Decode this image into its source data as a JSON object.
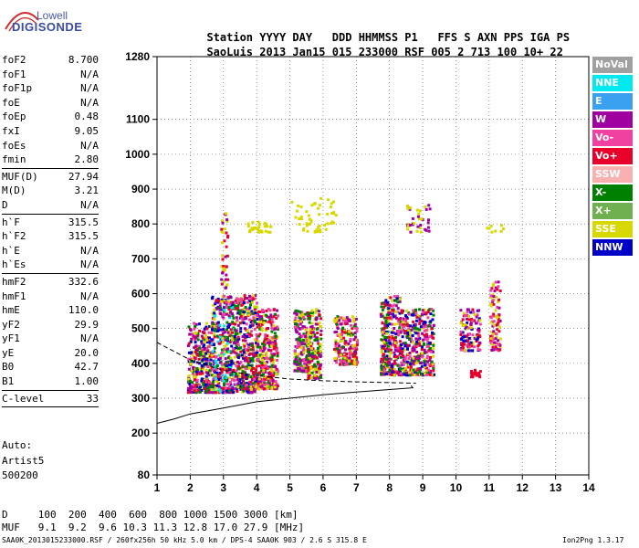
{
  "logo": {
    "line1": "Lowell",
    "line2": "DIGISONDE"
  },
  "header": {
    "labels": [
      "Station",
      "YYYY",
      "DAY",
      "DDD",
      "HHMMSS",
      "P1",
      "FFS",
      "S",
      "AXN",
      "PPS",
      "IGA",
      "PS"
    ],
    "values": [
      "SaoLuis",
      "2013",
      "Jan15",
      "015",
      "233000",
      "RSF",
      "005",
      "2",
      "713",
      "100",
      "10+",
      "22"
    ]
  },
  "params": [
    [
      {
        "k": "foF2",
        "v": "8.700"
      },
      {
        "k": "foF1",
        "v": "N/A"
      },
      {
        "k": "foF1p",
        "v": "N/A"
      },
      {
        "k": "foE",
        "v": "N/A"
      },
      {
        "k": "foEp",
        "v": "0.48"
      },
      {
        "k": "fxI",
        "v": "9.05"
      },
      {
        "k": "foEs",
        "v": "N/A"
      },
      {
        "k": "fmin",
        "v": "2.80"
      }
    ],
    [
      {
        "k": "MUF(D)",
        "v": "27.94"
      },
      {
        "k": "M(D)",
        "v": "3.21"
      },
      {
        "k": "D",
        "v": "N/A"
      }
    ],
    [
      {
        "k": "h`F",
        "v": "315.5"
      },
      {
        "k": "h`F2",
        "v": "315.5"
      },
      {
        "k": "h`E",
        "v": "N/A"
      },
      {
        "k": "h`Es",
        "v": "N/A"
      }
    ],
    [
      {
        "k": "hmF2",
        "v": "332.6"
      },
      {
        "k": "hmF1",
        "v": "N/A"
      },
      {
        "k": "hmE",
        "v": "110.0"
      },
      {
        "k": "yF2",
        "v": "29.9"
      },
      {
        "k": "yF1",
        "v": "N/A"
      },
      {
        "k": "yE",
        "v": "20.0"
      },
      {
        "k": "B0",
        "v": "42.7"
      },
      {
        "k": "B1",
        "v": "1.00"
      }
    ],
    [
      {
        "k": "C-level",
        "v": "33"
      }
    ]
  ],
  "auto": {
    "line1": "Auto:",
    "line2": "Artist5",
    "line3": "500200"
  },
  "legend": [
    {
      "label": "NoVal",
      "color": "#a0a0a0"
    },
    {
      "label": "NNE",
      "color": "#00e8f0"
    },
    {
      "label": "E",
      "color": "#3aa0f0"
    },
    {
      "label": "W",
      "color": "#a000a0"
    },
    {
      "label": "Vo-",
      "color": "#f040a0"
    },
    {
      "label": "Vo+",
      "color": "#e8002a"
    },
    {
      "label": "SSW",
      "color": "#f8b0b0"
    },
    {
      "label": "X-",
      "color": "#008000"
    },
    {
      "label": "X+",
      "color": "#70b050"
    },
    {
      "label": "SSE",
      "color": "#d8d800"
    },
    {
      "label": "NNW",
      "color": "#0000c8"
    }
  ],
  "chart_data": {
    "type": "scatter",
    "xlim": [
      1,
      14
    ],
    "ylim": [
      80,
      1280
    ],
    "x_ticks": [
      1,
      2,
      3,
      4,
      5,
      6,
      7,
      8,
      9,
      10,
      11,
      12,
      13,
      14
    ],
    "y_ticks": [
      80,
      200,
      300,
      400,
      500,
      600,
      700,
      800,
      900,
      1000,
      1100,
      1280
    ],
    "clusters": [
      {
        "x": [
          1.9,
          2.6
        ],
        "y": [
          320,
          520
        ],
        "n": 320,
        "colors": [
          "#e8002a",
          "#a000a0",
          "#d8d800",
          "#008000",
          "#f040a0",
          "#0000c8"
        ]
      },
      {
        "x": [
          2.6,
          3.3
        ],
        "y": [
          320,
          600
        ],
        "n": 420,
        "colors": [
          "#e8002a",
          "#a000a0",
          "#d8d800",
          "#008000",
          "#f040a0",
          "#0000c8",
          "#00e8f0"
        ]
      },
      {
        "x": [
          3.3,
          4.0
        ],
        "y": [
          320,
          600
        ],
        "n": 420,
        "colors": [
          "#e8002a",
          "#a000a0",
          "#d8d800",
          "#f040a0",
          "#0000c8",
          "#008000"
        ]
      },
      {
        "x": [
          4.0,
          4.6
        ],
        "y": [
          330,
          560
        ],
        "n": 320,
        "colors": [
          "#e8002a",
          "#a000a0",
          "#d8d800",
          "#008000",
          "#f040a0"
        ]
      },
      {
        "x": [
          5.1,
          5.5
        ],
        "y": [
          380,
          560
        ],
        "n": 180,
        "colors": [
          "#d8d800",
          "#008000",
          "#a000a0",
          "#f040a0"
        ]
      },
      {
        "x": [
          5.5,
          5.9
        ],
        "y": [
          360,
          560
        ],
        "n": 200,
        "colors": [
          "#d8d800",
          "#008000",
          "#e8002a",
          "#a000a0"
        ]
      },
      {
        "x": [
          6.3,
          7.0
        ],
        "y": [
          400,
          540
        ],
        "n": 220,
        "colors": [
          "#d8d800",
          "#e8002a",
          "#008000",
          "#a000a0",
          "#f040a0"
        ]
      },
      {
        "x": [
          7.7,
          8.3
        ],
        "y": [
          370,
          600
        ],
        "n": 320,
        "colors": [
          "#d8d800",
          "#e8002a",
          "#a000a0",
          "#008000",
          "#f040a0",
          "#0000c8"
        ]
      },
      {
        "x": [
          8.3,
          9.3
        ],
        "y": [
          370,
          560
        ],
        "n": 380,
        "colors": [
          "#d8d800",
          "#e8002a",
          "#a000a0",
          "#008000",
          "#f040a0",
          "#0000c8"
        ]
      },
      {
        "x": [
          10.1,
          10.7
        ],
        "y": [
          440,
          560
        ],
        "n": 140,
        "colors": [
          "#e8002a",
          "#a000a0",
          "#f040a0",
          "#0000c8",
          "#d8d800"
        ]
      },
      {
        "x": [
          11.0,
          11.3
        ],
        "y": [
          440,
          640
        ],
        "n": 90,
        "colors": [
          "#e8002a",
          "#a000a0",
          "#f040a0",
          "#d8d800"
        ]
      },
      {
        "x": [
          2.9,
          3.1
        ],
        "y": [
          620,
          880
        ],
        "n": 40,
        "colors": [
          "#a000a0",
          "#d8d800",
          "#e8002a"
        ]
      },
      {
        "x": [
          3.7,
          4.4
        ],
        "y": [
          780,
          810
        ],
        "n": 30,
        "colors": [
          "#d8d800"
        ]
      },
      {
        "x": [
          5.0,
          6.4
        ],
        "y": [
          780,
          880
        ],
        "n": 50,
        "colors": [
          "#d8d800"
        ]
      },
      {
        "x": [
          8.5,
          9.2
        ],
        "y": [
          780,
          860
        ],
        "n": 40,
        "colors": [
          "#a000a0",
          "#d8d800"
        ]
      },
      {
        "x": [
          10.8,
          11.4
        ],
        "y": [
          780,
          800
        ],
        "n": 8,
        "colors": [
          "#d8d800"
        ]
      },
      {
        "x": [
          10.4,
          10.7
        ],
        "y": [
          365,
          385
        ],
        "n": 25,
        "colors": [
          "#e8002a"
        ]
      }
    ],
    "solid_curve": [
      [
        1,
        228
      ],
      [
        1.5,
        240
      ],
      [
        2,
        255
      ],
      [
        3,
        272
      ],
      [
        4,
        290
      ],
      [
        5,
        300
      ],
      [
        6,
        310
      ],
      [
        7,
        318
      ],
      [
        8,
        325
      ],
      [
        8.7,
        330
      ],
      [
        8.65,
        336
      ]
    ],
    "dashed_curve": [
      [
        1,
        460
      ],
      [
        2,
        410
      ],
      [
        3,
        380
      ],
      [
        4,
        365
      ],
      [
        5,
        355
      ],
      [
        6,
        350
      ],
      [
        7,
        347
      ],
      [
        8,
        345
      ],
      [
        8.8,
        343
      ]
    ]
  },
  "footer": {
    "d_label": "D",
    "d_values": "100  200  400  600  800 1000 1500 3000 [km]",
    "muf_label": "MUF",
    "muf_values": "9.1  9.2  9.6 10.3 11.3 12.8 17.0 27.9 [MHz]",
    "info": "SAA0K_2013015233000.RSF / 260fx256h 50 kHz 5.0 km / DPS-4 SAA0K 903 / 2.6 S 315.8 E",
    "version": "Ion2Png 1.3.17"
  }
}
